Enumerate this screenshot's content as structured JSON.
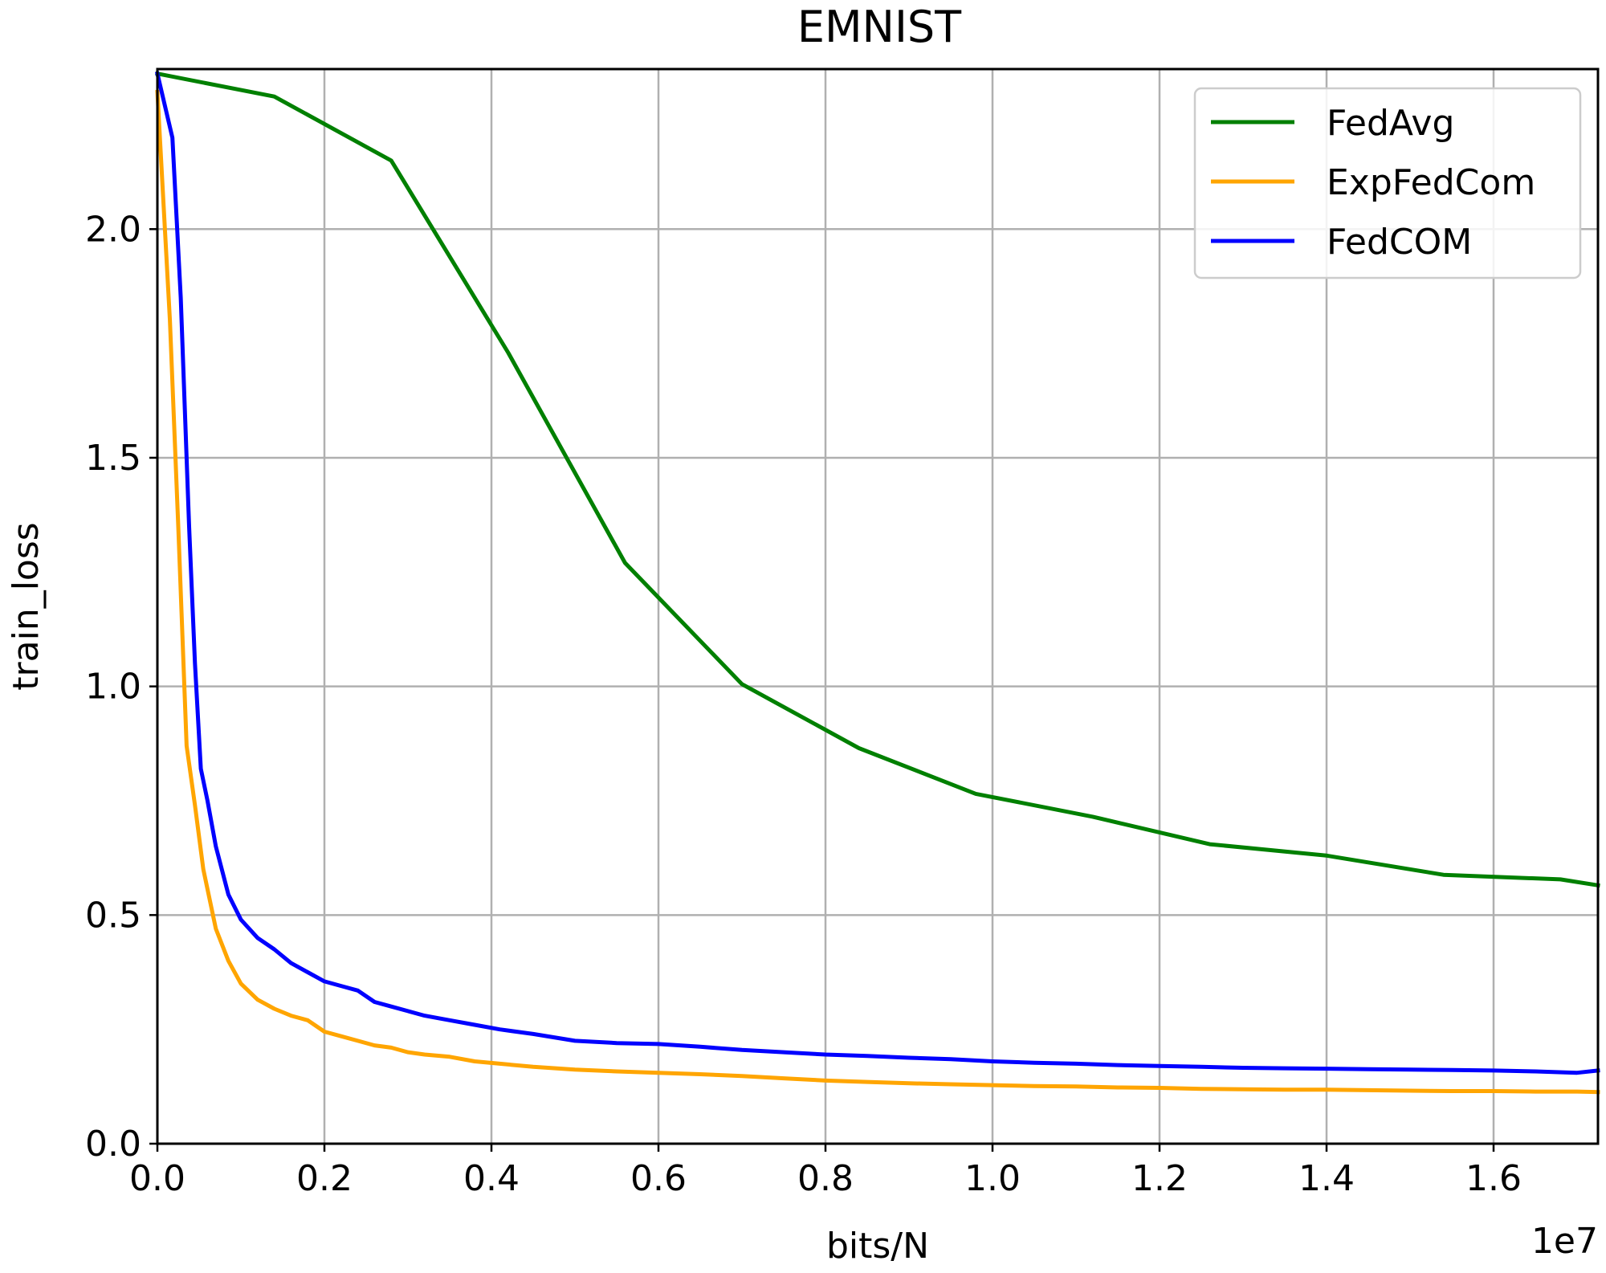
{
  "chart_data": {
    "type": "line",
    "title": "EMNIST",
    "xlabel": "bits/N",
    "ylabel": "train_loss",
    "x_offset_label": "1e7",
    "x_scale": 10000000,
    "xlim": [
      0,
      17250000
    ],
    "ylim": [
      0,
      2.35
    ],
    "grid": true,
    "legend_position": "top-right",
    "x_ticks": [
      0,
      2000000,
      4000000,
      6000000,
      8000000,
      10000000,
      12000000,
      14000000,
      16000000
    ],
    "x_tick_labels": [
      "0.0",
      "0.2",
      "0.4",
      "0.6",
      "0.8",
      "1.0",
      "1.2",
      "1.4",
      "1.6"
    ],
    "y_ticks": [
      0,
      0.5,
      1.0,
      1.5,
      2.0
    ],
    "y_tick_labels": [
      "0.0",
      "0.5",
      "1.0",
      "1.5",
      "2.0"
    ],
    "series": [
      {
        "name": "FedAvg",
        "color": "#008000",
        "x": [
          0,
          1400000,
          2800000,
          4200000,
          5600000,
          7000000,
          8400000,
          9800000,
          11200000,
          12600000,
          14000000,
          15400000,
          16800000,
          17250000
        ],
        "y": [
          2.34,
          2.29,
          2.15,
          1.73,
          1.27,
          1.005,
          0.865,
          0.765,
          0.715,
          0.655,
          0.63,
          0.588,
          0.578,
          0.565
        ]
      },
      {
        "name": "ExpFedCom",
        "color": "#FFA500",
        "x": [
          0,
          150000,
          250000,
          350000,
          450000,
          550000,
          700000,
          850000,
          1000000,
          1200000,
          1400000,
          1600000,
          1800000,
          2000000,
          2200000,
          2400000,
          2600000,
          2800000,
          3000000,
          3200000,
          3500000,
          3800000,
          4100000,
          4500000,
          5000000,
          5500000,
          6000000,
          6500000,
          7000000,
          7500000,
          8000000,
          8500000,
          9000000,
          9500000,
          10000000,
          10500000,
          11000000,
          11500000,
          12000000,
          12500000,
          13000000,
          13500000,
          14000000,
          14500000,
          15000000,
          15500000,
          16000000,
          16500000,
          17000000,
          17250000
        ],
        "y": [
          2.3,
          1.8,
          1.35,
          0.87,
          0.74,
          0.6,
          0.47,
          0.4,
          0.35,
          0.315,
          0.295,
          0.28,
          0.27,
          0.245,
          0.235,
          0.225,
          0.215,
          0.21,
          0.2,
          0.195,
          0.19,
          0.18,
          0.175,
          0.168,
          0.162,
          0.158,
          0.155,
          0.152,
          0.148,
          0.143,
          0.138,
          0.135,
          0.132,
          0.13,
          0.128,
          0.126,
          0.125,
          0.123,
          0.122,
          0.12,
          0.119,
          0.118,
          0.118,
          0.117,
          0.116,
          0.115,
          0.115,
          0.114,
          0.114,
          0.113
        ]
      },
      {
        "name": "FedCOM",
        "color": "#0000FF",
        "x": [
          0,
          180000,
          280000,
          380000,
          450000,
          520000,
          600000,
          700000,
          850000,
          1000000,
          1200000,
          1400000,
          1600000,
          1800000,
          2000000,
          2200000,
          2400000,
          2600000,
          2800000,
          3000000,
          3200000,
          3500000,
          3800000,
          4100000,
          4500000,
          5000000,
          5500000,
          6000000,
          6500000,
          7000000,
          7500000,
          8000000,
          8500000,
          9000000,
          9500000,
          10000000,
          10500000,
          11000000,
          11500000,
          12000000,
          12500000,
          13000000,
          13500000,
          14000000,
          14500000,
          15000000,
          15500000,
          16000000,
          16500000,
          17000000,
          17250000
        ],
        "y": [
          2.34,
          2.2,
          1.85,
          1.35,
          1.05,
          0.82,
          0.75,
          0.65,
          0.545,
          0.49,
          0.45,
          0.425,
          0.395,
          0.375,
          0.355,
          0.345,
          0.335,
          0.31,
          0.3,
          0.29,
          0.28,
          0.27,
          0.26,
          0.25,
          0.24,
          0.225,
          0.22,
          0.218,
          0.212,
          0.205,
          0.2,
          0.195,
          0.192,
          0.188,
          0.185,
          0.18,
          0.177,
          0.175,
          0.172,
          0.17,
          0.168,
          0.166,
          0.165,
          0.164,
          0.163,
          0.162,
          0.161,
          0.16,
          0.158,
          0.155,
          0.16
        ]
      }
    ]
  }
}
